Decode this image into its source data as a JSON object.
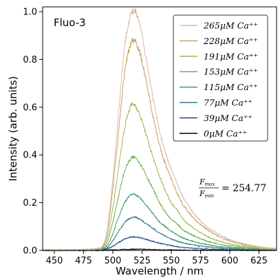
{
  "chart_data": {
    "type": "line",
    "title": "",
    "panel_label": "Fluo-3",
    "xlabel": "Wavelength / nm",
    "ylabel": "Intensity (arb. units)",
    "xlim": [
      440,
      640
    ],
    "ylim": [
      0,
      1.02
    ],
    "xticks": [
      450,
      475,
      500,
      525,
      550,
      575,
      600,
      625
    ],
    "yticks": [
      0.0,
      0.2,
      0.4,
      0.6,
      0.8,
      1.0
    ],
    "xtick_labels": [
      "450",
      "475",
      "500",
      "525",
      "550",
      "575",
      "600",
      "625"
    ],
    "ytick_labels": [
      "0.0",
      "0.2",
      "0.4",
      "0.6",
      "0.8",
      "1.0"
    ],
    "legend_position": "top-right",
    "annotation": {
      "numerator": "F",
      "numerator_sub": "max",
      "denominator": "F",
      "denominator_sub": "min",
      "value": "= 254.77"
    },
    "x": [
      440,
      490,
      495,
      500,
      505,
      510,
      515,
      518,
      520,
      525,
      530,
      535,
      540,
      545,
      550,
      555,
      560,
      570,
      580,
      590,
      600,
      610,
      620,
      630,
      640
    ],
    "series": [
      {
        "name": "265μM Ca⁺⁺",
        "color": "#dcb9a6",
        "values": [
          0.0,
          0.01,
          0.08,
          0.3,
          0.58,
          0.85,
          0.98,
          1.0,
          0.99,
          0.9,
          0.76,
          0.62,
          0.5,
          0.41,
          0.34,
          0.28,
          0.22,
          0.15,
          0.1,
          0.07,
          0.045,
          0.03,
          0.02,
          0.012,
          0.008
        ]
      },
      {
        "name": "228μM Ca⁺⁺",
        "color": "#c4a462",
        "values": [
          0.0,
          0.01,
          0.07,
          0.26,
          0.5,
          0.74,
          0.86,
          0.88,
          0.87,
          0.79,
          0.67,
          0.55,
          0.44,
          0.36,
          0.3,
          0.24,
          0.19,
          0.13,
          0.09,
          0.06,
          0.04,
          0.027,
          0.018,
          0.011,
          0.007
        ]
      },
      {
        "name": "191μM Ca⁺⁺",
        "color": "#a5b35a",
        "values": [
          0.0,
          0.008,
          0.05,
          0.18,
          0.35,
          0.51,
          0.6,
          0.61,
          0.6,
          0.54,
          0.46,
          0.38,
          0.31,
          0.25,
          0.2,
          0.17,
          0.13,
          0.09,
          0.06,
          0.04,
          0.028,
          0.019,
          0.013,
          0.008,
          0.005
        ]
      },
      {
        "name": "153μM Ca⁺⁺",
        "color": "#6fb04b",
        "values": [
          0.0,
          0.006,
          0.035,
          0.12,
          0.23,
          0.33,
          0.38,
          0.39,
          0.385,
          0.35,
          0.3,
          0.25,
          0.2,
          0.16,
          0.13,
          0.11,
          0.085,
          0.06,
          0.04,
          0.028,
          0.019,
          0.013,
          0.009,
          0.006,
          0.004
        ]
      },
      {
        "name": "115μM Ca⁺⁺",
        "color": "#3f9a6a",
        "values": [
          0.0,
          0.004,
          0.02,
          0.07,
          0.14,
          0.2,
          0.23,
          0.235,
          0.232,
          0.21,
          0.18,
          0.15,
          0.12,
          0.1,
          0.08,
          0.065,
          0.052,
          0.036,
          0.025,
          0.017,
          0.012,
          0.008,
          0.006,
          0.004,
          0.003
        ]
      },
      {
        "name": "77μM Ca⁺⁺",
        "color": "#2e7a85",
        "values": [
          0.0,
          0.003,
          0.012,
          0.04,
          0.08,
          0.115,
          0.135,
          0.14,
          0.138,
          0.125,
          0.107,
          0.09,
          0.073,
          0.06,
          0.048,
          0.039,
          0.031,
          0.022,
          0.015,
          0.01,
          0.007,
          0.005,
          0.004,
          0.003,
          0.002
        ]
      },
      {
        "name": "39μM Ca⁺⁺",
        "color": "#23447e",
        "values": [
          0.0,
          0.001,
          0.006,
          0.018,
          0.033,
          0.047,
          0.055,
          0.057,
          0.056,
          0.051,
          0.044,
          0.037,
          0.03,
          0.025,
          0.02,
          0.016,
          0.013,
          0.009,
          0.006,
          0.004,
          0.003,
          0.002,
          0.002,
          0.001,
          0.001
        ]
      },
      {
        "name": "0μM Ca⁺⁺",
        "color": "#000000",
        "values": [
          0.0,
          0.0,
          0.001,
          0.002,
          0.003,
          0.004,
          0.005,
          0.005,
          0.005,
          0.0045,
          0.004,
          0.0035,
          0.003,
          0.0025,
          0.002,
          0.0015,
          0.0012,
          0.001,
          0.0008,
          0.0006,
          0.0005,
          0.0004,
          0.0003,
          0.0002,
          0.0001
        ]
      }
    ]
  }
}
